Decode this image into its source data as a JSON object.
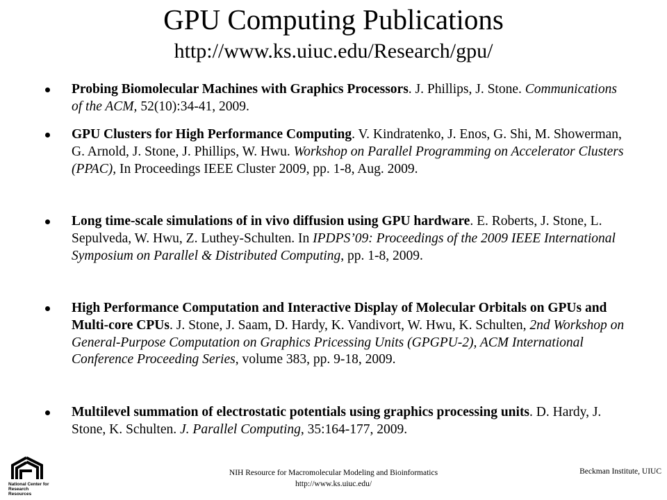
{
  "header": {
    "title": "GPU Computing Publications",
    "subtitle": "http://www.ks.uiuc.edu/Research/gpu/"
  },
  "items": [
    {
      "segments": [
        {
          "text": "Probing Biomolecular Machines with Graphics Processors",
          "style": "bold"
        },
        {
          "text": ".  J. Phillips, J. Stone.  ",
          "style": "normal"
        },
        {
          "text": "Communications of the ACM,",
          "style": "italic"
        },
        {
          "text": " 52(10):34-41, 2009.",
          "style": "normal"
        }
      ]
    },
    {
      "segments": [
        {
          "text": "GPU Clusters for High Performance Computing",
          "style": "bold"
        },
        {
          "text": ".  V. Kindratenko, J. Enos, G. Shi, M. Showerman, G. Arnold, J. Stone, J. Phillips, W. Hwu.  ",
          "style": "normal"
        },
        {
          "text": "Workshop on Parallel Programming on Accelerator Clusters (PPAC),",
          "style": "italic"
        },
        {
          "text": " In Proceedings IEEE Cluster 2009, pp. 1-8, Aug. 2009.",
          "style": "normal"
        }
      ]
    },
    {
      "segments": [
        {
          "text": "Long time-scale simulations of in vivo diffusion using GPU hardware",
          "style": "bold"
        },
        {
          "text": ". E. Roberts, J. Stone, L. Sepulveda, W. Hwu, Z. Luthey-Schulten. In ",
          "style": "normal"
        },
        {
          "text": "IPDPS’09: Proceedings of the 2009 IEEE International Symposium on Parallel & Distributed Computing",
          "style": "italic"
        },
        {
          "text": ", pp. 1-8, 2009.",
          "style": "normal"
        }
      ]
    },
    {
      "segments": [
        {
          "text": "High Performance Computation and Interactive Display of Molecular Orbitals on GPUs and Multi-core CPUs",
          "style": "bold"
        },
        {
          "text": ". J. Stone, J. Saam, D. Hardy, K. Vandivort, W. Hwu, K. Schulten, ",
          "style": "normal"
        },
        {
          "text": "2nd Workshop on General-Purpose Computation on Graphics Pricessing Units (GPGPU-2), ACM International Conference Proceeding Series",
          "style": "italic"
        },
        {
          "text": ", volume 383, pp. 9-18, 2009.",
          "style": "normal"
        }
      ]
    },
    {
      "segments": [
        {
          "text": "Multilevel summation of electrostatic potentials using graphics processing units",
          "style": "bold"
        },
        {
          "text": ". D. Hardy, J. Stone, K. Schulten. ",
          "style": "normal"
        },
        {
          "text": "J. Parallel Computing",
          "style": "italic"
        },
        {
          "text": ", 35:164-177, 2009.",
          "style": "normal"
        }
      ]
    }
  ],
  "footer": {
    "logo_text": "National Center for Research Resources",
    "center_line1": "NIH Resource for Macromolecular Modeling and Bioinformatics",
    "center_line2": "http://www.ks.uiuc.edu/",
    "right": "Beckman Institute, UIUC"
  }
}
